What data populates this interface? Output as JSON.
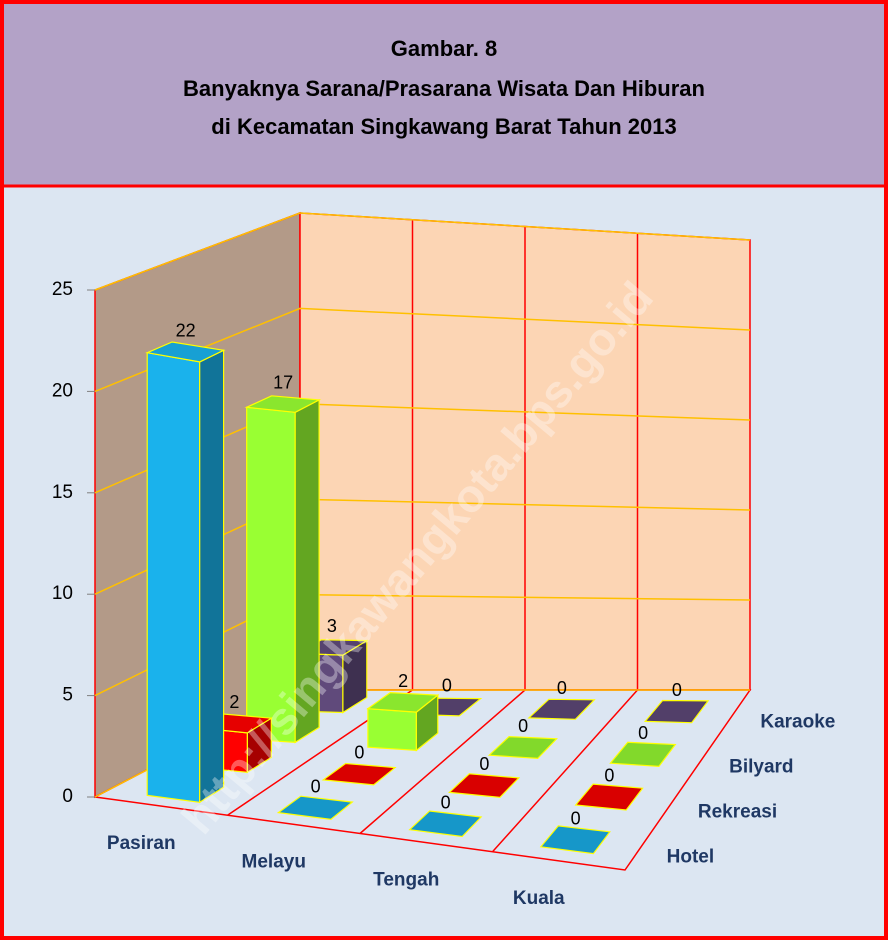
{
  "chart_data": {
    "type": "bar3d",
    "title": [
      "Gambar. 8",
      "Banyaknya Sarana/Prasarana  Wisata Dan Hiburan",
      "di Kecamatan Singkawang Barat Tahun 2013"
    ],
    "watermark": "http://singkawangkota.bps.go.id",
    "categories": [
      "Pasiran",
      "Melayu",
      "Tengah",
      "Kuala"
    ],
    "series": [
      {
        "name": "Hotel",
        "color": "#1ab2ec",
        "values": [
          22,
          0,
          0,
          0
        ]
      },
      {
        "name": "Rekreasi",
        "color": "#ff0000",
        "values": [
          2,
          0,
          0,
          0
        ]
      },
      {
        "name": "Bilyard",
        "color": "#99ff33",
        "values": [
          17,
          2,
          0,
          0
        ]
      },
      {
        "name": "Karaoke",
        "color": "#604a7b",
        "values": [
          3,
          0,
          0,
          0
        ]
      }
    ],
    "ylim": [
      0,
      25
    ],
    "yticks": [
      0,
      5,
      10,
      15,
      20,
      25
    ],
    "grid": true
  }
}
